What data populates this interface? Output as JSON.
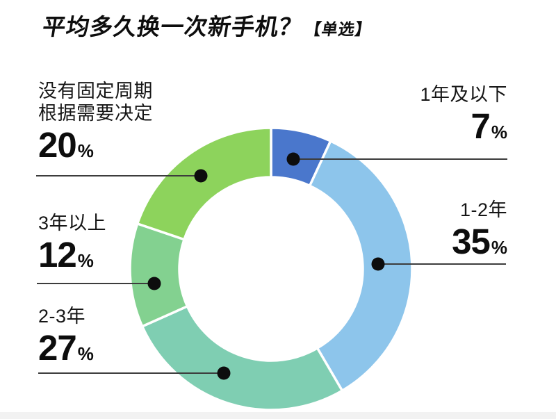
{
  "header": {
    "title": "平均多久换一次新手机？",
    "tag": "【单选】"
  },
  "chart_data": {
    "type": "pie",
    "subtype": "donut",
    "title": "平均多久换一次新手机？【单选】",
    "direction": "clockwise",
    "start_angle_deg": 0,
    "categories": [
      "1年及以下",
      "1-2年",
      "2-3年",
      "3年以上",
      "没有固定周期根据需要决定"
    ],
    "values": [
      7,
      35,
      27,
      12,
      20
    ],
    "segments": [
      {
        "label": "1年及以下",
        "value": 7,
        "unit": "%",
        "color": "#4a77cc"
      },
      {
        "label": "1-2年",
        "value": 35,
        "unit": "%",
        "color": "#8dc5eb"
      },
      {
        "label": "2-3年",
        "value": 27,
        "unit": "%",
        "color": "#7fceb2"
      },
      {
        "label": "3年以上",
        "value": 12,
        "unit": "%",
        "color": "#83d190"
      },
      {
        "label": "没有固定周期根据需要决定",
        "label_lines": [
          "没有固定周期",
          "根据需要决定"
        ],
        "value": 20,
        "unit": "%",
        "color": "#8dd35c"
      }
    ]
  }
}
